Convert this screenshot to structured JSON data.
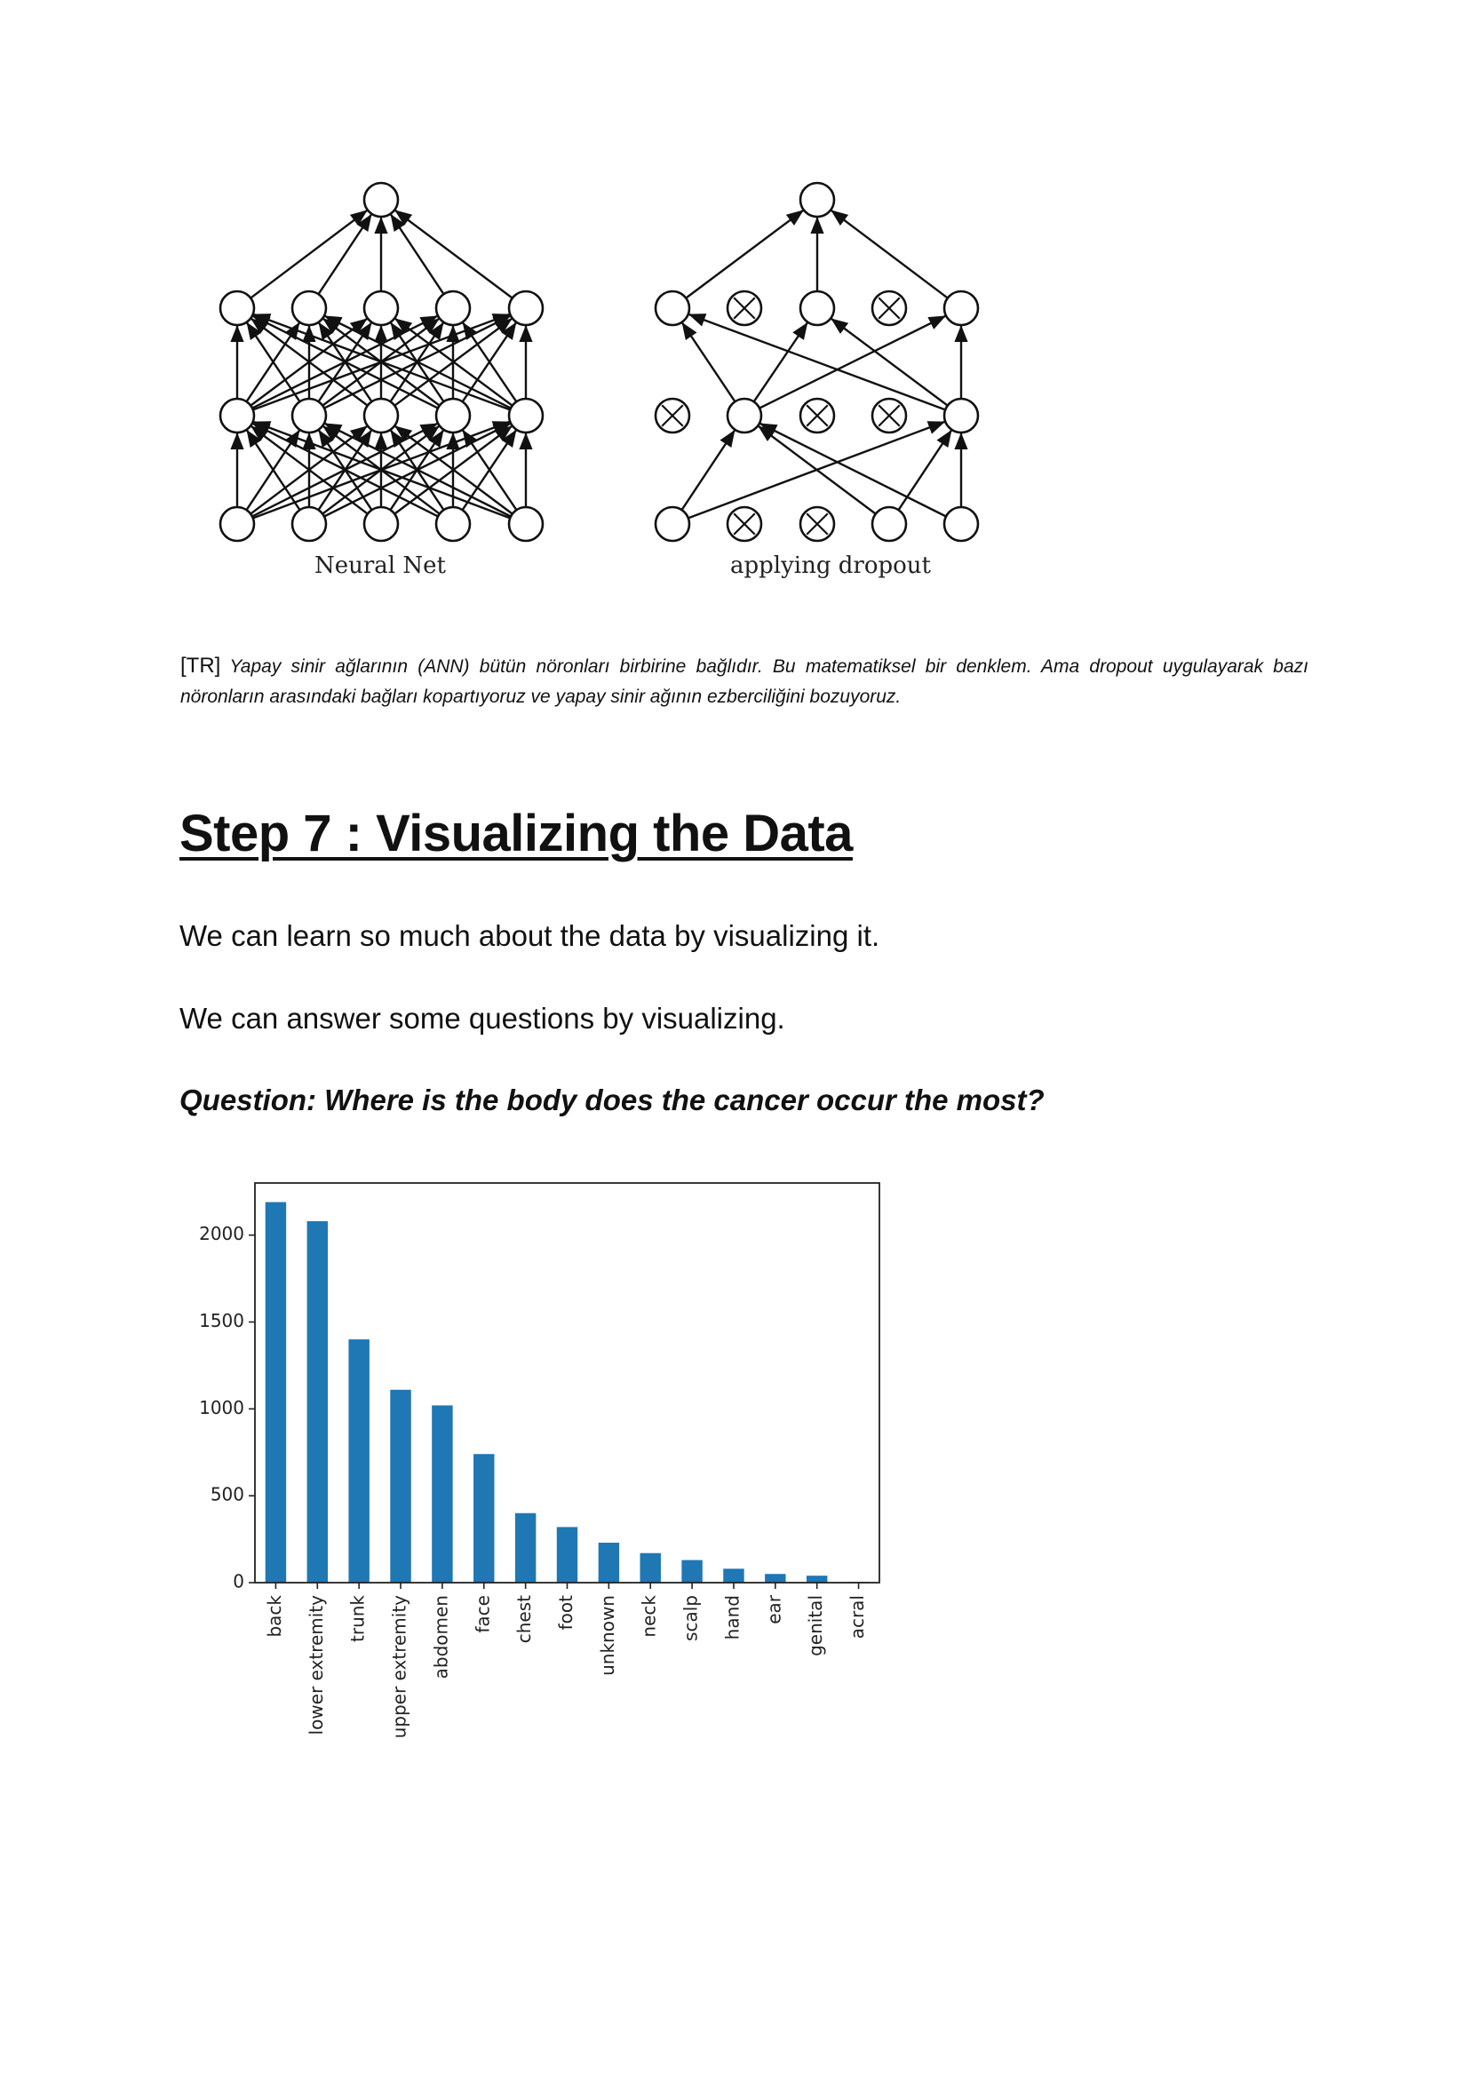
{
  "figure": {
    "left_label": "Neural Net",
    "right_label": "applying dropout"
  },
  "caption": {
    "tag": "[TR]",
    "text": "Yapay sinir ağlarının (ANN) bütün nöronları birbirine bağlıdır. Bu matematiksel bir denklem. Ama dropout uygulayarak bazı nöronların arasındaki bağları kopartıyoruz ve yapay sinir ağının ezberciliğini bozuyoruz."
  },
  "heading": "Step 7 : Visualizing the Data",
  "paragraphs": [
    "We can learn so much about the data by visualizing it.",
    "We can answer some questions by visualizing."
  ],
  "question": "Question: Where is the body does the cancer occur the most?",
  "chart_data": {
    "type": "bar",
    "categories": [
      "back",
      "lower extremity",
      "trunk",
      "upper extremity",
      "abdomen",
      "face",
      "chest",
      "foot",
      "unknown",
      "neck",
      "scalp",
      "hand",
      "ear",
      "genital",
      "acral"
    ],
    "values": [
      2190,
      2080,
      1400,
      1110,
      1020,
      740,
      400,
      320,
      230,
      170,
      130,
      80,
      50,
      40,
      5
    ],
    "yticks": [
      0,
      500,
      1000,
      1500,
      2000
    ],
    "ylim": [
      0,
      2300
    ],
    "color": "#1f77b4",
    "title": "",
    "xlabel": "",
    "ylabel": ""
  }
}
